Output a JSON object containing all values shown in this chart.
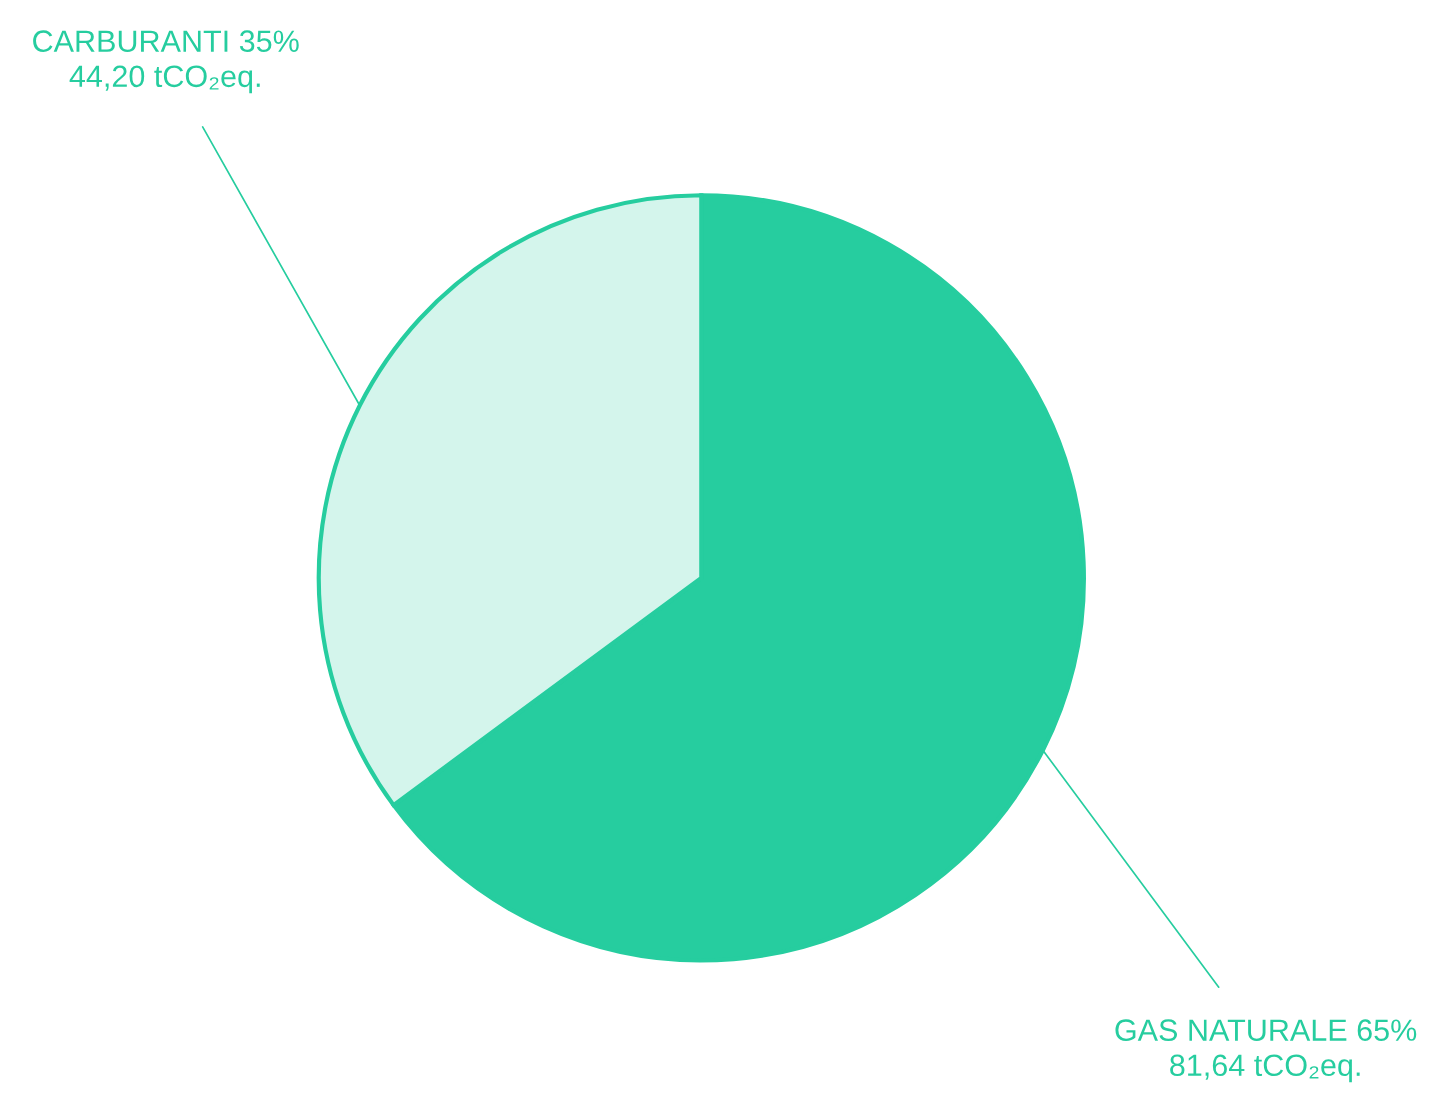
{
  "chart_data": {
    "type": "pie",
    "categories": [
      "GAS NATURALE",
      "CARBURANTI"
    ],
    "values": [
      81.64,
      44.2
    ],
    "value_labels": [
      "65%\n81,64 tCO₂eq.",
      "35%\n44,20 tCO₂eq."
    ],
    "colors": [
      "#26cd9f",
      "#d4f5ec"
    ],
    "legend": false
  }
}
